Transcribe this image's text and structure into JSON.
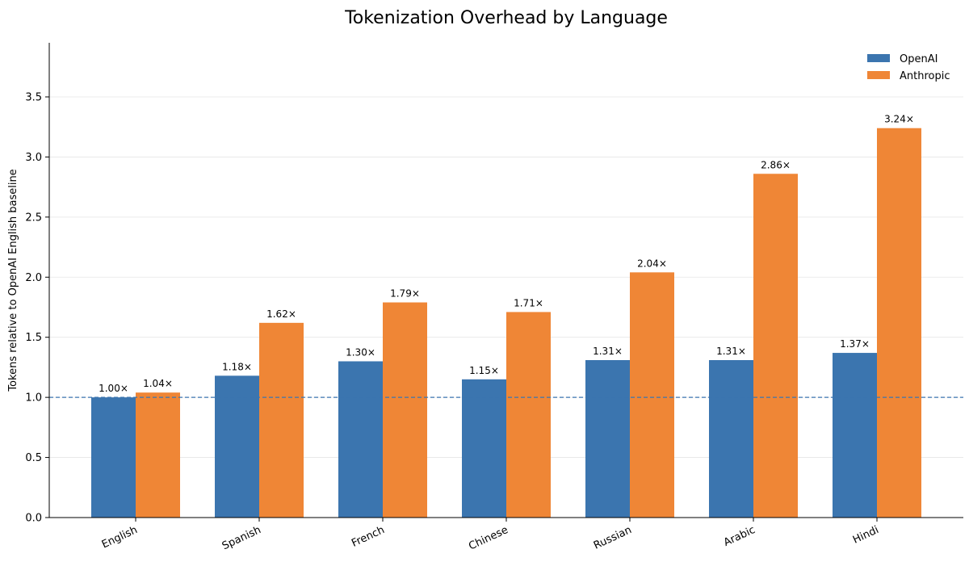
{
  "chart_data": {
    "type": "bar",
    "title": "Tokenization Overhead by Language",
    "xlabel": "",
    "ylabel": "Tokens relative to OpenAI English baseline",
    "categories": [
      "English",
      "Spanish",
      "French",
      "Chinese",
      "Russian",
      "Arabic",
      "Hindi"
    ],
    "series": [
      {
        "name": "OpenAI",
        "color": "#3b75af",
        "values": [
          1.0,
          1.18,
          1.3,
          1.15,
          1.31,
          1.31,
          1.37
        ],
        "labels": [
          "1.00×",
          "1.18×",
          "1.30×",
          "1.15×",
          "1.31×",
          "1.31×",
          "1.37×"
        ]
      },
      {
        "name": "Anthropic",
        "color": "#ef8636",
        "values": [
          1.04,
          1.62,
          1.79,
          1.71,
          2.04,
          2.86,
          3.24
        ],
        "labels": [
          "1.04×",
          "1.62×",
          "1.79×",
          "1.71×",
          "2.04×",
          "2.86×",
          "3.24×"
        ]
      }
    ],
    "ylim": [
      0,
      3.95
    ],
    "yticks": [
      0.0,
      0.5,
      1.0,
      1.5,
      2.0,
      2.5,
      3.0,
      3.5
    ],
    "ytick_labels": [
      "0.0",
      "0.5",
      "1.0",
      "1.5",
      "2.0",
      "2.5",
      "3.0",
      "3.5"
    ],
    "reference_line": {
      "y": 1.0,
      "style": "dashed",
      "color": "#3b75af"
    },
    "grid": "horizontal",
    "legend_position": "top-right"
  }
}
